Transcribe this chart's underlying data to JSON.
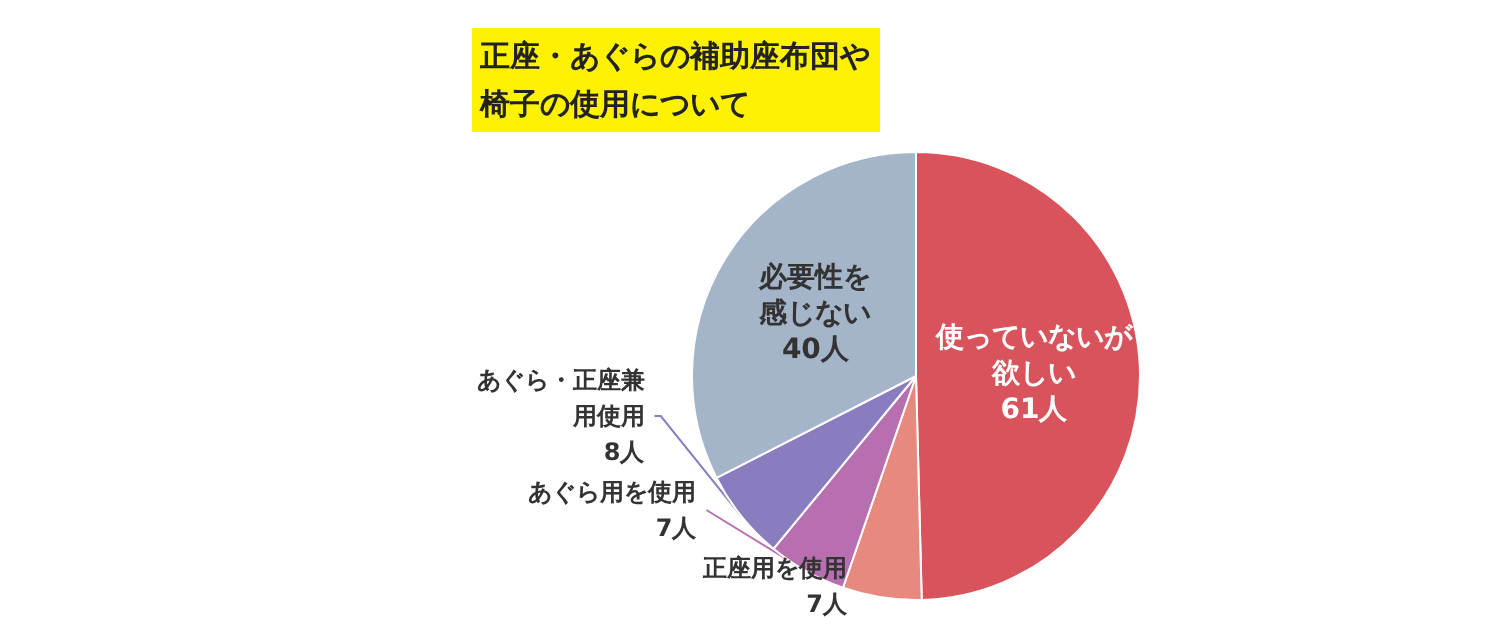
{
  "chart_data": {
    "type": "pie",
    "title": "正座・あぐらの補助座布団や椅子の使用について",
    "categories": [
      "使っていないが欲しい",
      "正座用を使用",
      "あぐら用を使用",
      "あぐら・正座兼用使用",
      "必要性を感じない"
    ],
    "values": [
      61,
      7,
      7,
      8,
      40
    ],
    "value_labels": [
      "61人",
      "7人",
      "7人",
      "8人",
      "40人"
    ],
    "colors": [
      "#d9535c",
      "#e8897f",
      "#b86fb0",
      "#8a7dbf",
      "#a4b5c9"
    ],
    "legend": false
  }
}
